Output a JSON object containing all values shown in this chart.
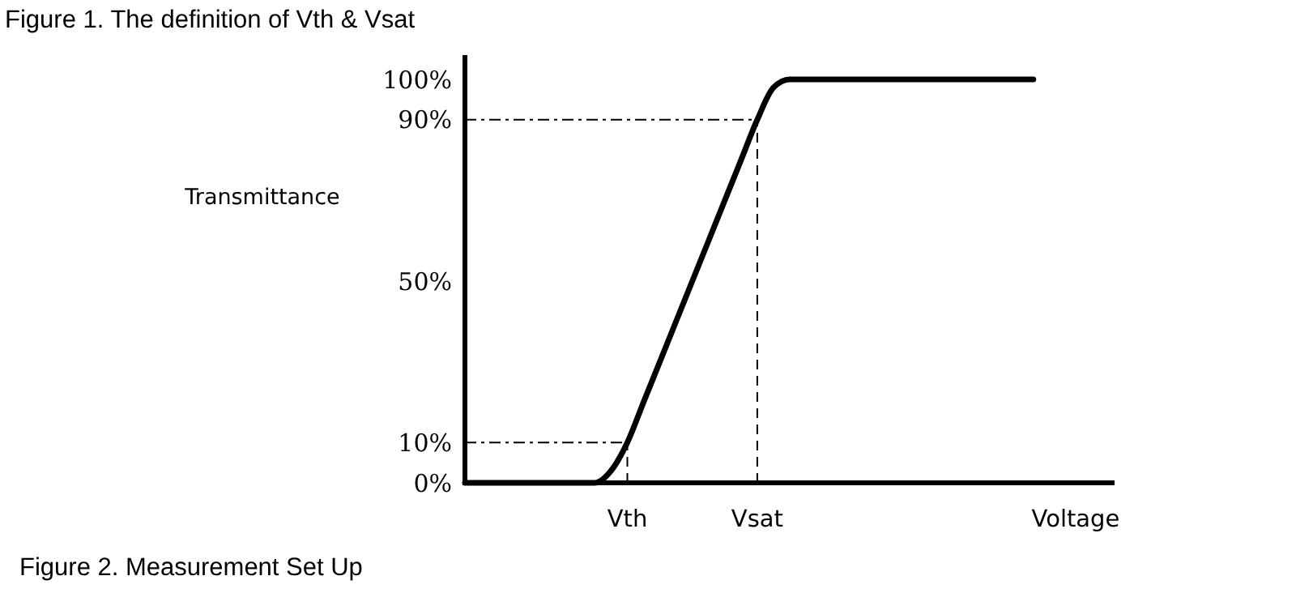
{
  "chart_data": {
    "type": "line",
    "title": "Figure 1. The definition of Vth & Vsat",
    "ylabel": "Transmittance",
    "xlabel": "Voltage",
    "annotations": [
      "Figure 2. Measurement Set Up"
    ],
    "categories": [
      null,
      null,
      null,
      null,
      null,
      null,
      null,
      null,
      null,
      null,
      "Vth",
      null,
      null,
      null,
      null,
      null,
      null,
      null,
      "Vsat",
      null,
      null,
      null,
      null,
      null,
      null,
      null,
      null,
      null,
      null,
      null,
      null,
      null,
      null,
      null,
      null,
      null,
      null,
      null,
      null,
      null,
      null
    ],
    "series": [
      {
        "color": "#000000",
        "values": [
          0,
          0,
          0,
          0,
          0,
          0,
          0,
          0,
          0,
          3,
          10,
          20,
          30,
          40,
          50,
          60,
          70,
          80,
          90,
          98,
          100,
          100,
          100,
          100,
          100,
          100,
          100,
          100,
          100,
          100,
          100,
          100,
          100,
          100,
          100,
          100,
          null,
          null,
          null,
          null,
          null
        ]
      }
    ],
    "ylim": [
      0,
      106
    ],
    "yticks": [
      {
        "value": 0,
        "label": "0%"
      },
      {
        "value": 10,
        "label": "10%"
      },
      {
        "value": 50,
        "label": "50%"
      },
      {
        "value": 90,
        "label": "90%"
      },
      {
        "value": 100,
        "label": "100%"
      }
    ],
    "ref_lines": [
      {
        "axis": "y",
        "value": 90,
        "line_style": "dashdot",
        "color": "#000000"
      },
      {
        "axis": "y",
        "value": 10,
        "line_style": "dashdot",
        "color": "#000000"
      },
      {
        "axis": "x",
        "value": "Vth",
        "line_style": "dashed",
        "color": "#000000"
      },
      {
        "axis": "x",
        "value": "Vsat",
        "line_style": "dashed",
        "color": "#000000"
      }
    ],
    "grid": false,
    "marker": "none",
    "line_style": "solid"
  }
}
